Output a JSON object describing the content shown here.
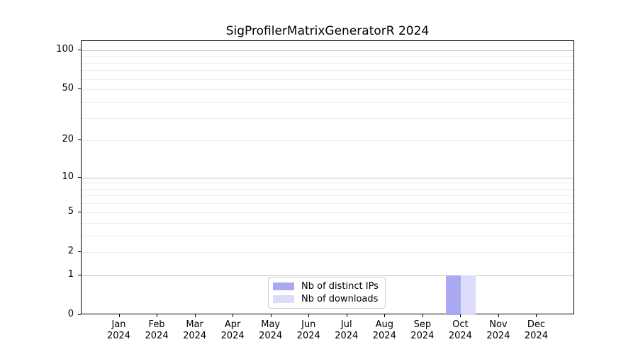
{
  "chart_data": {
    "type": "bar",
    "title": "SigProfilerMatrixGeneratorR 2024",
    "categories": [
      "Jan 2024",
      "Feb 2024",
      "Mar 2024",
      "Apr 2024",
      "May 2024",
      "Jun 2024",
      "Jul 2024",
      "Aug 2024",
      "Sep 2024",
      "Oct 2024",
      "Nov 2024",
      "Dec 2024"
    ],
    "series": [
      {
        "name": "Nb of distinct IPs",
        "color": "#a9a9f3",
        "values": [
          0,
          0,
          0,
          0,
          0,
          0,
          0,
          0,
          0,
          1,
          0,
          0
        ]
      },
      {
        "name": "Nb of downloads",
        "color": "#dcdcf8",
        "values": [
          0,
          0,
          0,
          0,
          0,
          0,
          0,
          0,
          0,
          1,
          0,
          0
        ]
      }
    ],
    "xlabel": "",
    "ylabel": "",
    "y_scale": "log1p",
    "y_ticks": [
      0,
      1,
      2,
      5,
      10,
      20,
      50,
      100
    ],
    "ylim": [
      0,
      117
    ],
    "grid": "horizontal, major ticks darker with log-decade minors",
    "legend_position": "bottom-center-inside",
    "colors": {
      "major_grid": "#c6c6c6",
      "minor_grid": "#ededed",
      "spine": "#000000",
      "background": "#ffffff",
      "legend_border": "#cccccc"
    }
  }
}
